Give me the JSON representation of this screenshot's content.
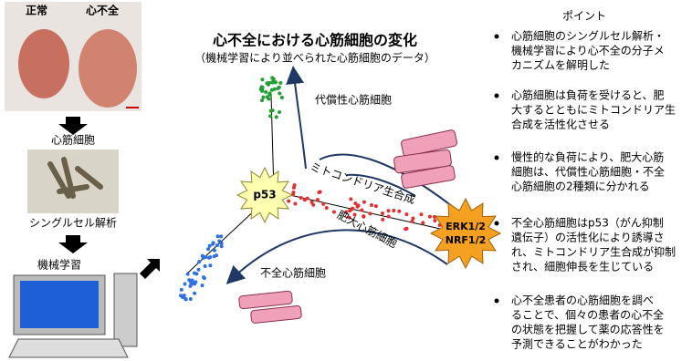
{
  "left": {
    "normal": "正常",
    "failure": "心不全",
    "cells": "心筋細胞",
    "single_cell": "シングルセル解析",
    "ml": "機械学習"
  },
  "center": {
    "title": "心不全における心筋細胞の変化",
    "subtitle": "（機械学習により並べられた心筋細胞のデータ）",
    "compensated": "代償性心筋細胞",
    "mito": "ミトコンドリア生合成",
    "hypertrophic": "肥大心筋細胞",
    "failing": "不全心筋細胞",
    "p53": "p53",
    "erk": "ERK1/2",
    "nrf": "NRF1/2"
  },
  "points": {
    "title": "ポイント",
    "items": [
      [
        "心筋細胞のシングルセル解析・",
        "機械学習により心不全の分子メ",
        "カニズムを解明した"
      ],
      [
        "心筋細胞は負荷を受けると、肥",
        "大するとともにミトコンドリア生",
        "合成を活性化させる"
      ],
      [
        "慢性的な負荷により、肥大心筋",
        "細胞は、代償性心筋細胞・不全",
        "心筋細胞の2種類に分かれる"
      ],
      [
        "不全心筋細胞はp53（がん抑制",
        "遺伝子）の活性化により誘導さ",
        "れ、ミトコンドリア生合成が抑制",
        "され、細胞伸長を生じている"
      ],
      [
        "心不全患者の心筋細胞を調べ",
        "ることで、個々の患者の心不全",
        "の状態を把握して薬の応答性を",
        "予測できることがわかった"
      ]
    ]
  }
}
